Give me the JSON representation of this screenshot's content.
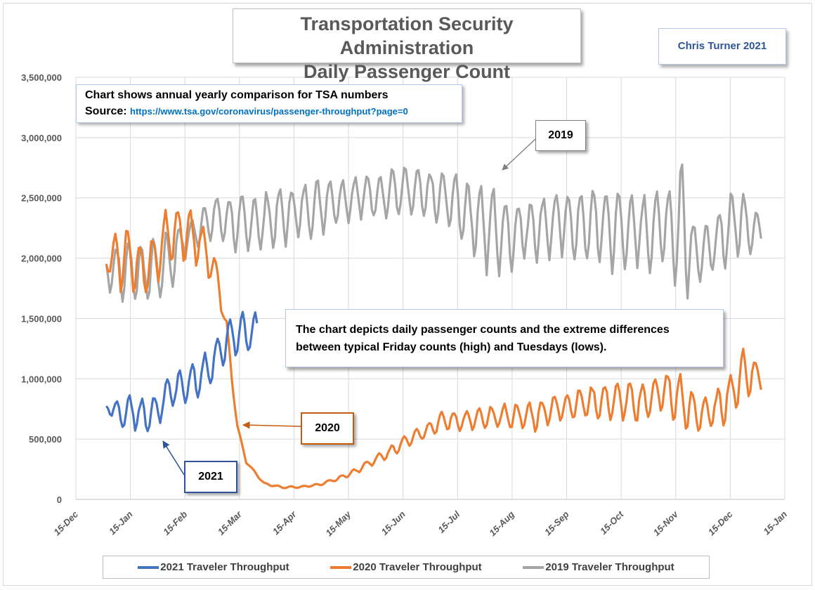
{
  "chart_data": {
    "type": "line",
    "title": "Transportation Security Administration Daily Passenger Count",
    "title_lines": [
      "Transportation Security Administration",
      "Daily Passenger Count"
    ],
    "author": "Chris Turner 2021",
    "xlabel": "",
    "ylabel": "",
    "ylim": [
      0,
      3500000
    ],
    "yticks": [
      0,
      500000,
      1000000,
      1500000,
      2000000,
      2500000,
      3000000,
      3500000
    ],
    "ytick_labels": [
      "0",
      "500,000",
      "1,000,000",
      "1,500,000",
      "2,000,000",
      "2,500,000",
      "3,000,000",
      "3,500,000"
    ],
    "xlim": [
      "15-Dec",
      "15-Jan"
    ],
    "xtick_labels": [
      "15-Dec",
      "15-Jan",
      "15-Feb",
      "15-Mar",
      "15-Apr",
      "15-May",
      "15-Jun",
      "15-Jul",
      "15-Aug",
      "15-Sep",
      "15-Oct",
      "15-Nov",
      "15-Dec",
      "15-Jan"
    ],
    "grid": true,
    "legend_position": "bottom",
    "x_unit": "days since 15-Dec",
    "series": [
      {
        "name": "2021 Traveler Throughput",
        "color": "#4472c4",
        "start_day": 17,
        "end_day": 101,
        "weekly_high": [
          [
            17,
            780000
          ],
          [
            24,
            870000
          ],
          [
            31,
            880000
          ],
          [
            38,
            850000
          ],
          [
            45,
            870000
          ],
          [
            52,
            1070000
          ],
          [
            59,
            1100000
          ],
          [
            66,
            1150000
          ],
          [
            73,
            1260000
          ],
          [
            80,
            1350000
          ],
          [
            87,
            1530000
          ],
          [
            94,
            1570000
          ],
          [
            101,
            1560000
          ]
        ],
        "weekly_low": [
          [
            17,
            760000
          ],
          [
            24,
            540000
          ],
          [
            31,
            560000
          ],
          [
            38,
            480000
          ],
          [
            45,
            590000
          ],
          [
            52,
            700000
          ],
          [
            59,
            760000
          ],
          [
            66,
            780000
          ],
          [
            73,
            850000
          ],
          [
            80,
            1080000
          ],
          [
            87,
            1150000
          ],
          [
            94,
            1180000
          ],
          [
            101,
            1200000
          ]
        ]
      },
      {
        "name": "2020 Traveler Throughput",
        "color": "#ed7d31",
        "start_day": 17,
        "end_day": 382,
        "weekly_high": [
          [
            17,
            2050000
          ],
          [
            24,
            2340000
          ],
          [
            31,
            2250000
          ],
          [
            38,
            2100000
          ],
          [
            45,
            2250000
          ],
          [
            52,
            2500000
          ],
          [
            59,
            2450000
          ],
          [
            66,
            2430000
          ],
          [
            73,
            2200000
          ],
          [
            80,
            1900000
          ],
          [
            84,
            1500000
          ],
          [
            87,
            1050000
          ],
          [
            90,
            620000
          ],
          [
            95,
            320000
          ],
          [
            105,
            140000
          ],
          [
            115,
            110000
          ],
          [
            125,
            110000
          ],
          [
            135,
            130000
          ],
          [
            145,
            180000
          ],
          [
            155,
            250000
          ],
          [
            165,
            350000
          ],
          [
            175,
            440000
          ],
          [
            185,
            560000
          ],
          [
            195,
            630000
          ],
          [
            205,
            740000
          ],
          [
            215,
            730000
          ],
          [
            225,
            760000
          ],
          [
            235,
            800000
          ],
          [
            245,
            810000
          ],
          [
            255,
            820000
          ],
          [
            265,
            860000
          ],
          [
            275,
            900000
          ],
          [
            285,
            950000
          ],
          [
            295,
            960000
          ],
          [
            305,
            980000
          ],
          [
            315,
            990000
          ],
          [
            325,
            1060000
          ],
          [
            335,
            1100000
          ],
          [
            345,
            880000
          ],
          [
            355,
            870000
          ],
          [
            365,
            1070000
          ],
          [
            372,
            1280000
          ],
          [
            380,
            1150000
          ]
        ],
        "weekly_low": [
          [
            17,
            1900000
          ],
          [
            24,
            1700000
          ],
          [
            31,
            1650000
          ],
          [
            38,
            1650000
          ],
          [
            45,
            1750000
          ],
          [
            52,
            1900000
          ],
          [
            59,
            1950000
          ],
          [
            66,
            1900000
          ],
          [
            73,
            1850000
          ],
          [
            80,
            1620000
          ],
          [
            84,
            1300000
          ],
          [
            87,
            950000
          ],
          [
            90,
            600000
          ],
          [
            95,
            300000
          ],
          [
            105,
            120000
          ],
          [
            115,
            90000
          ],
          [
            125,
            95000
          ],
          [
            135,
            110000
          ],
          [
            145,
            150000
          ],
          [
            155,
            200000
          ],
          [
            165,
            270000
          ],
          [
            175,
            330000
          ],
          [
            185,
            430000
          ],
          [
            195,
            500000
          ],
          [
            205,
            560000
          ],
          [
            215,
            560000
          ],
          [
            225,
            560000
          ],
          [
            235,
            560000
          ],
          [
            245,
            560000
          ],
          [
            255,
            540000
          ],
          [
            265,
            620000
          ],
          [
            275,
            650000
          ],
          [
            285,
            650000
          ],
          [
            295,
            640000
          ],
          [
            305,
            640000
          ],
          [
            315,
            570000
          ],
          [
            325,
            700000
          ],
          [
            335,
            560000
          ],
          [
            345,
            520000
          ],
          [
            355,
            560000
          ],
          [
            365,
            620000
          ],
          [
            372,
            800000
          ],
          [
            380,
            880000
          ]
        ]
      },
      {
        "name": "2019 Traveler Throughput",
        "color": "#a5a5a5",
        "start_day": 17,
        "end_day": 382,
        "weekly_high": [
          [
            17,
            2060000
          ],
          [
            24,
            2150000
          ],
          [
            31,
            2180000
          ],
          [
            38,
            2150000
          ],
          [
            45,
            2200000
          ],
          [
            52,
            2250000
          ],
          [
            59,
            2300000
          ],
          [
            66,
            2350000
          ],
          [
            73,
            2500000
          ],
          [
            80,
            2550000
          ],
          [
            90,
            2520000
          ],
          [
            100,
            2560000
          ],
          [
            110,
            2580000
          ],
          [
            120,
            2620000
          ],
          [
            130,
            2640000
          ],
          [
            140,
            2700000
          ],
          [
            150,
            2680000
          ],
          [
            160,
            2710000
          ],
          [
            170,
            2730000
          ],
          [
            180,
            2780000
          ],
          [
            190,
            2760000
          ],
          [
            200,
            2750000
          ],
          [
            210,
            2720000
          ],
          [
            220,
            2680000
          ],
          [
            230,
            2650000
          ],
          [
            240,
            2550000
          ],
          [
            250,
            2500000
          ],
          [
            260,
            2550000
          ],
          [
            270,
            2580000
          ],
          [
            280,
            2600000
          ],
          [
            290,
            2620000
          ],
          [
            300,
            2600000
          ],
          [
            310,
            2550000
          ],
          [
            320,
            2560000
          ],
          [
            330,
            2600000
          ],
          [
            338,
            2880000
          ],
          [
            345,
            2300000
          ],
          [
            355,
            2280000
          ],
          [
            365,
            2600000
          ],
          [
            372,
            2580000
          ],
          [
            380,
            2400000
          ]
        ],
        "weekly_low": [
          [
            17,
            1750000
          ],
          [
            24,
            1600000
          ],
          [
            31,
            1620000
          ],
          [
            38,
            1570000
          ],
          [
            45,
            1600000
          ],
          [
            52,
            1650000
          ],
          [
            59,
            1950000
          ],
          [
            66,
            2050000
          ],
          [
            73,
            2100000
          ],
          [
            80,
            2100000
          ],
          [
            90,
            2020000
          ],
          [
            100,
            2000000
          ],
          [
            110,
            2050000
          ],
          [
            120,
            2100000
          ],
          [
            130,
            2150000
          ],
          [
            140,
            2200000
          ],
          [
            150,
            2280000
          ],
          [
            160,
            2300000
          ],
          [
            170,
            2300000
          ],
          [
            180,
            2300000
          ],
          [
            190,
            2300000
          ],
          [
            200,
            2250000
          ],
          [
            210,
            2200000
          ],
          [
            220,
            2000000
          ],
          [
            230,
            1800000
          ],
          [
            240,
            1800000
          ],
          [
            250,
            1950000
          ],
          [
            260,
            1950000
          ],
          [
            270,
            1980000
          ],
          [
            280,
            1900000
          ],
          [
            290,
            1900000
          ],
          [
            300,
            1850000
          ],
          [
            310,
            1880000
          ],
          [
            320,
            1850000
          ],
          [
            330,
            1950000
          ],
          [
            336,
            1560000
          ],
          [
            345,
            1750000
          ],
          [
            355,
            1850000
          ],
          [
            365,
            1900000
          ],
          [
            372,
            2000000
          ],
          [
            380,
            2020000
          ]
        ]
      }
    ],
    "annotations": [
      {
        "text": "2019",
        "target_series": "2019 Traveler Throughput",
        "arrow_color": "#7f7f7f"
      },
      {
        "text": "2020",
        "target_series": "2020 Traveler Throughput",
        "arrow_color": "#c55a11"
      },
      {
        "text": "2021",
        "target_series": "2021 Traveler Throughput",
        "arrow_color": "#2f5597"
      }
    ]
  },
  "source_box": {
    "line1": "Chart shows annual yearly comparison for TSA numbers",
    "source_label": "Source:",
    "source_url": "https://www.tsa.gov/coronavirus/passenger-throughput?page=0"
  },
  "note_box": {
    "line1": "The chart depicts daily passenger counts and the extreme differences",
    "line2": "between typical Friday counts (high) and Tuesdays (lows)."
  }
}
